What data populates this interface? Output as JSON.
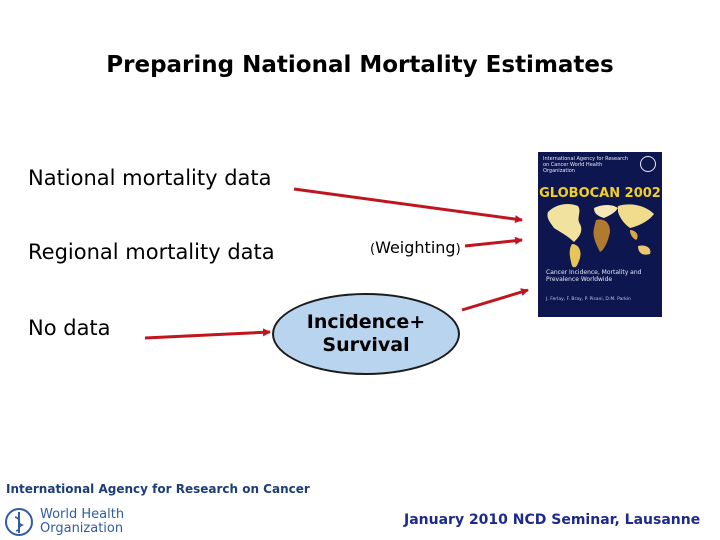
{
  "title": "Preparing National Mortality Estimates",
  "rows": {
    "national": "National mortality data",
    "regional": "Regional mortality data",
    "no_data": "No data"
  },
  "weighting": "Weighting",
  "incidence": {
    "line1": "Incidence+",
    "line2": "Survival"
  },
  "cover": {
    "header": "International Agency for Research on Cancer World Health Organization",
    "brand": "GLOBOCAN 2002",
    "subtitle": "Cancer Incidence, Mortality and Prevalence Worldwide",
    "authors": "J. Ferlay, F. Bray, P. Pisani, D.M. Parkin"
  },
  "footer_logos": {
    "iarc": "International Agency for Research on Cancer",
    "who_line1": "World Health",
    "who_line2": "Organization"
  },
  "footer": "January 2010 NCD Seminar, Lausanne",
  "colors": {
    "arrow": "#c0141e",
    "ellipse_fill": "#b9d4ee",
    "cover_bg": "#0e1650",
    "cover_brand": "#f2d020",
    "footer_text": "#1d2a8c"
  }
}
